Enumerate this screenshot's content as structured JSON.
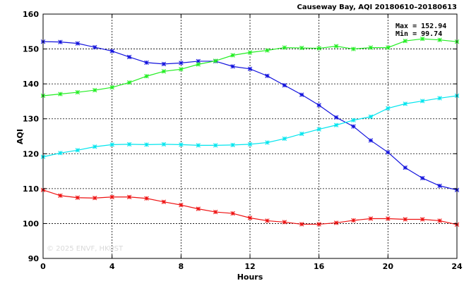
{
  "chart_data": {
    "type": "line",
    "title": "Causeway Bay, AQI 20180610–20180613",
    "xlabel": "Hours",
    "ylabel": "AQI",
    "xlim": [
      0,
      24
    ],
    "ylim": [
      90,
      160
    ],
    "xticks": [
      0,
      4,
      8,
      12,
      16,
      20,
      24
    ],
    "yticks": [
      90,
      100,
      110,
      120,
      130,
      140,
      150,
      160
    ],
    "grid": true,
    "x": [
      0,
      1,
      2,
      3,
      4,
      5,
      6,
      7,
      8,
      9,
      10,
      11,
      12,
      13,
      14,
      15,
      16,
      17,
      18,
      19,
      20,
      21,
      22,
      23,
      24
    ],
    "series": [
      {
        "color": "#1111dd",
        "values": [
          152.1,
          152.0,
          151.6,
          150.5,
          149.4,
          147.7,
          146.1,
          145.7,
          146.0,
          146.5,
          146.5,
          145.0,
          144.3,
          142.3,
          139.6,
          136.9,
          133.9,
          130.4,
          127.8,
          123.8,
          120.4,
          116.0,
          113.0,
          110.8,
          109.6
        ]
      },
      {
        "color": "#22ee22",
        "values": [
          136.6,
          137.1,
          137.6,
          138.2,
          139.0,
          140.4,
          142.2,
          143.6,
          144.2,
          145.6,
          146.6,
          148.2,
          149.0,
          149.6,
          150.4,
          150.3,
          150.2,
          150.8,
          150.0,
          150.4,
          150.4,
          152.3,
          152.9,
          152.6,
          152.1
        ]
      },
      {
        "color": "#00e5ee",
        "values": [
          119.1,
          120.2,
          121.0,
          122.0,
          122.6,
          122.7,
          122.6,
          122.7,
          122.6,
          122.4,
          122.4,
          122.5,
          122.7,
          123.2,
          124.3,
          125.7,
          127.0,
          128.2,
          129.6,
          130.6,
          133.0,
          134.3,
          135.1,
          135.9,
          136.6
        ]
      },
      {
        "color": "#ee1111",
        "values": [
          109.6,
          108.0,
          107.4,
          107.3,
          107.6,
          107.6,
          107.2,
          106.2,
          105.3,
          104.2,
          103.3,
          102.9,
          101.6,
          100.8,
          100.4,
          99.8,
          99.8,
          100.2,
          100.9,
          101.4,
          101.4,
          101.2,
          101.2,
          100.8,
          99.7
        ]
      }
    ],
    "annotations": {
      "max": "Max = 152.94",
      "min": "Min =  99.74"
    },
    "watermark": "© 2025  ENVF, HKUST"
  }
}
